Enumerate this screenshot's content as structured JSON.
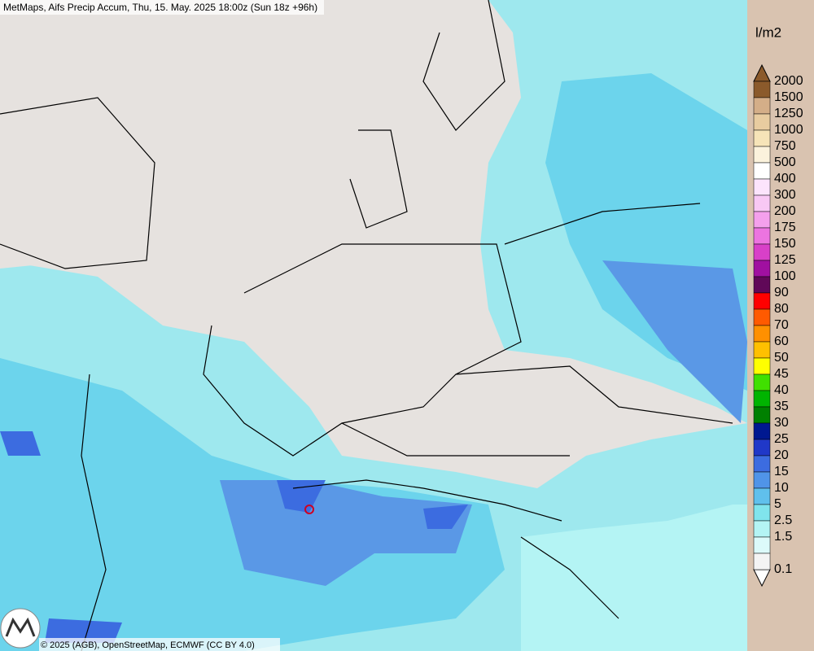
{
  "header": {
    "title": "MetMaps, Aifs Precip Accum, Thu, 15. May. 2025 18:00z (Sun 18z +96h)"
  },
  "legend": {
    "unit": "l/m2",
    "entries": [
      {
        "label": "2000",
        "color": "#8b5a2b"
      },
      {
        "label": "1500",
        "color": "#d4ae88"
      },
      {
        "label": "1250",
        "color": "#e8cca0"
      },
      {
        "label": "1000",
        "color": "#f6e4b8"
      },
      {
        "label": "750",
        "color": "#fbf2dc"
      },
      {
        "label": "500",
        "color": "#ffffff"
      },
      {
        "label": "400",
        "color": "#fce4fc"
      },
      {
        "label": "300",
        "color": "#f8c8f4"
      },
      {
        "label": "200",
        "color": "#f4a0ec"
      },
      {
        "label": "175",
        "color": "#ec74e0"
      },
      {
        "label": "150",
        "color": "#d840c8"
      },
      {
        "label": "125",
        "color": "#a010a0"
      },
      {
        "label": "100",
        "color": "#600858"
      },
      {
        "label": "90",
        "color": "#ff0000"
      },
      {
        "label": "80",
        "color": "#ff5a00"
      },
      {
        "label": "70",
        "color": "#ff9000"
      },
      {
        "label": "60",
        "color": "#ffc000"
      },
      {
        "label": "50",
        "color": "#ffff00"
      },
      {
        "label": "45",
        "color": "#40e000"
      },
      {
        "label": "40",
        "color": "#00b400"
      },
      {
        "label": "35",
        "color": "#008000"
      },
      {
        "label": "30",
        "color": "#001890"
      },
      {
        "label": "25",
        "color": "#2038c8"
      },
      {
        "label": "20",
        "color": "#3c6ce0"
      },
      {
        "label": "15",
        "color": "#5094e8"
      },
      {
        "label": "10",
        "color": "#60c0ec"
      },
      {
        "label": "5",
        "color": "#80e4ec"
      },
      {
        "label": "2.5",
        "color": "#b4f4f4"
      },
      {
        "label": "1.5",
        "color": "#dcfafa"
      },
      {
        "label": "0.1",
        "color": "#f4f4f4"
      }
    ]
  },
  "footer": {
    "credit": "© 2025 (AGB), OpenStreetMap, ECMWF (CC BY 4.0)"
  }
}
